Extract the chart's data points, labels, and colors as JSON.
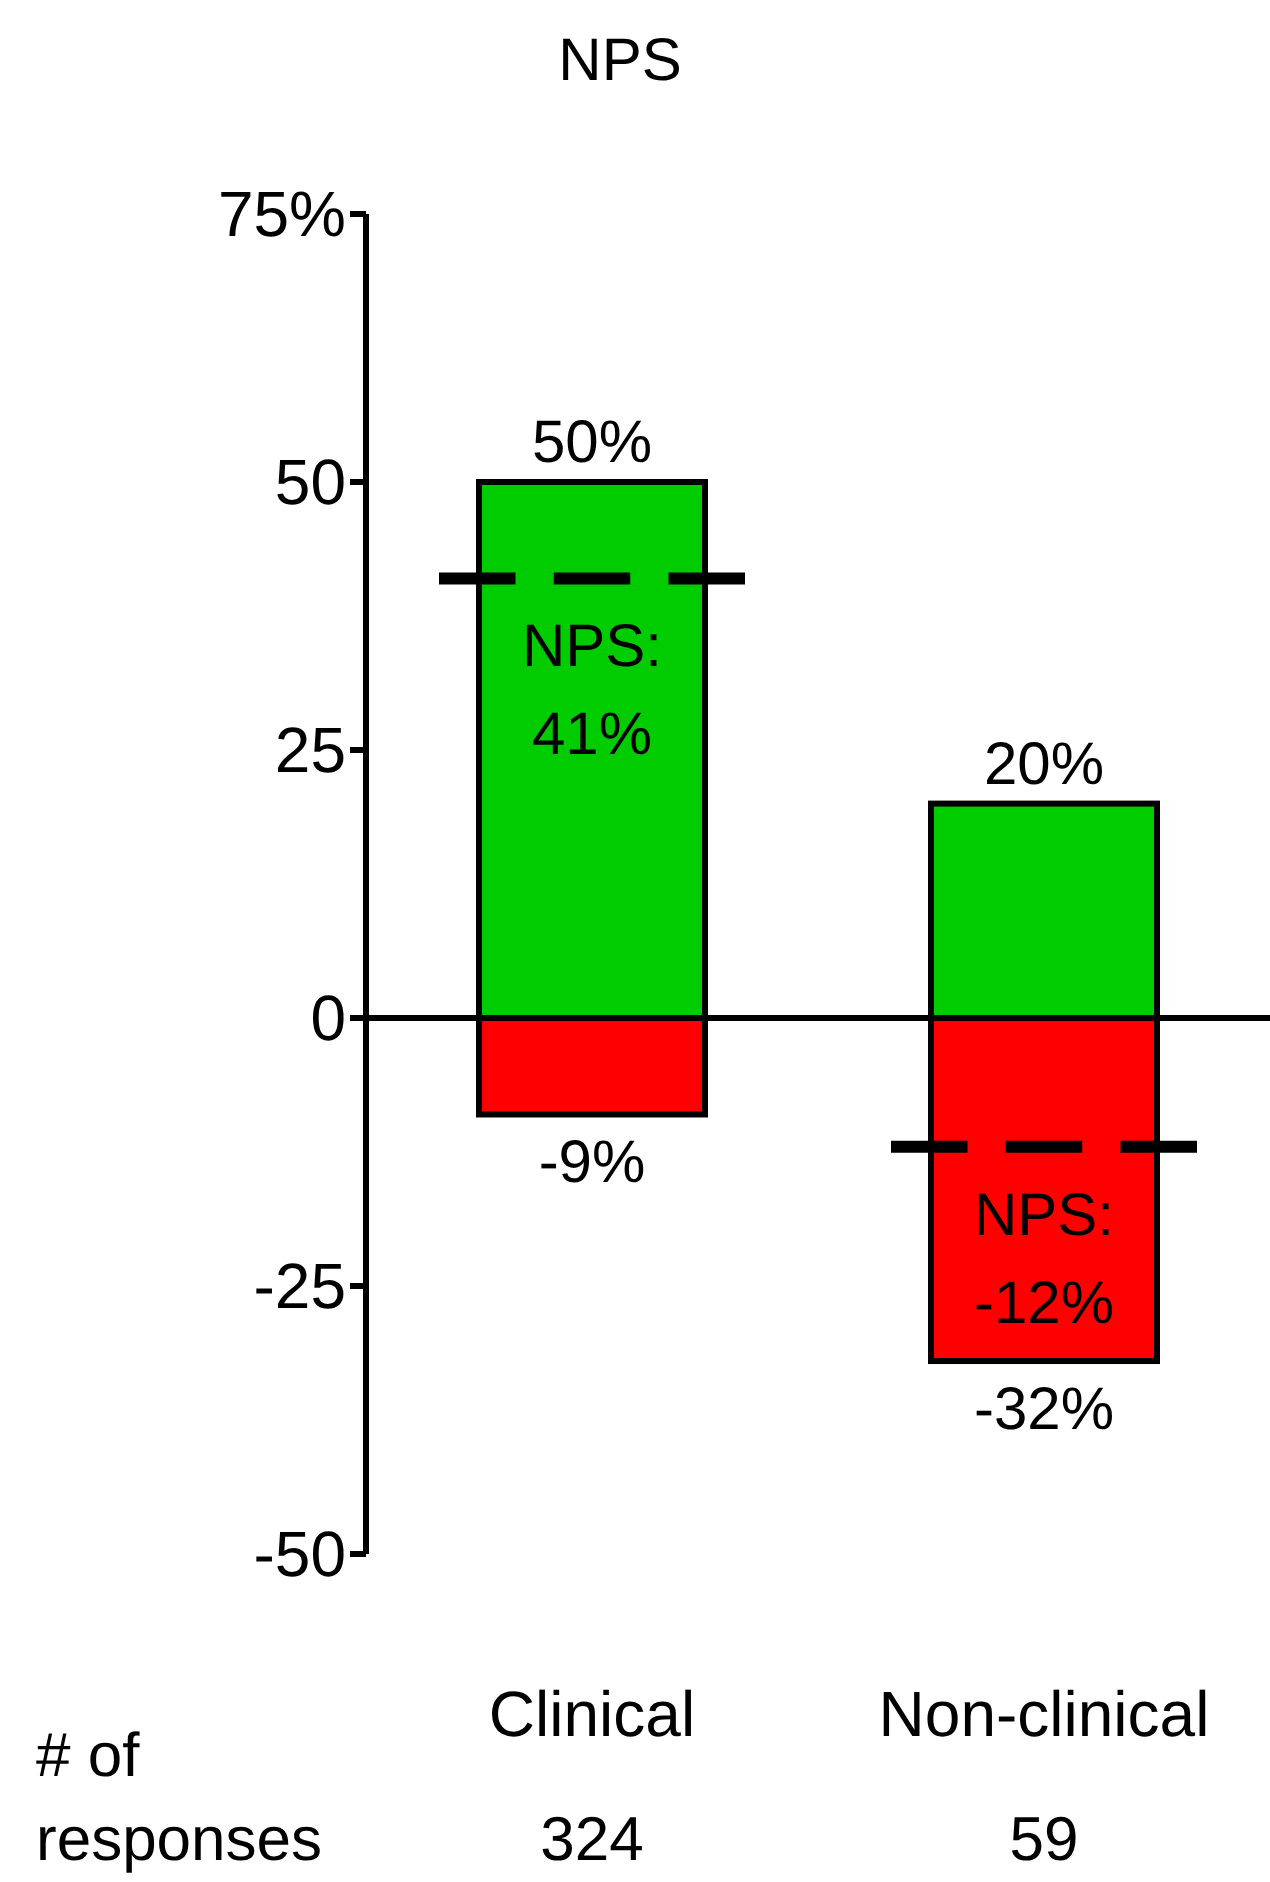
{
  "chart_data": {
    "type": "bar",
    "title": "NPS",
    "stacked": true,
    "categories": [
      "Clinical",
      "Non-clinical"
    ],
    "series": [
      {
        "color": "#00cc00",
        "values": [
          50,
          20
        ],
        "value_labels": [
          "50%",
          "20%"
        ]
      },
      {
        "color": "#ff0000",
        "values": [
          -9,
          -32
        ],
        "value_labels": [
          "-9%",
          "-32%"
        ]
      }
    ],
    "ylim": [
      -50,
      75
    ],
    "yticks": [
      {
        "value": -50,
        "label": "-50"
      },
      {
        "value": -25,
        "label": "-25"
      },
      0,
      25,
      50,
      {
        "value": 75,
        "label": "75%"
      }
    ],
    "ref_lines": [
      {
        "axis": "y",
        "value": 41,
        "label": "NPS:\n41%",
        "color": "#000000",
        "line_style": "dashed"
      },
      {
        "axis": "y",
        "value": -12,
        "label": "NPS:\n-12%",
        "color": "#000000",
        "line_style": "dashed"
      }
    ],
    "annotations": [
      "# of\nresponses",
      "324",
      "59"
    ]
  }
}
